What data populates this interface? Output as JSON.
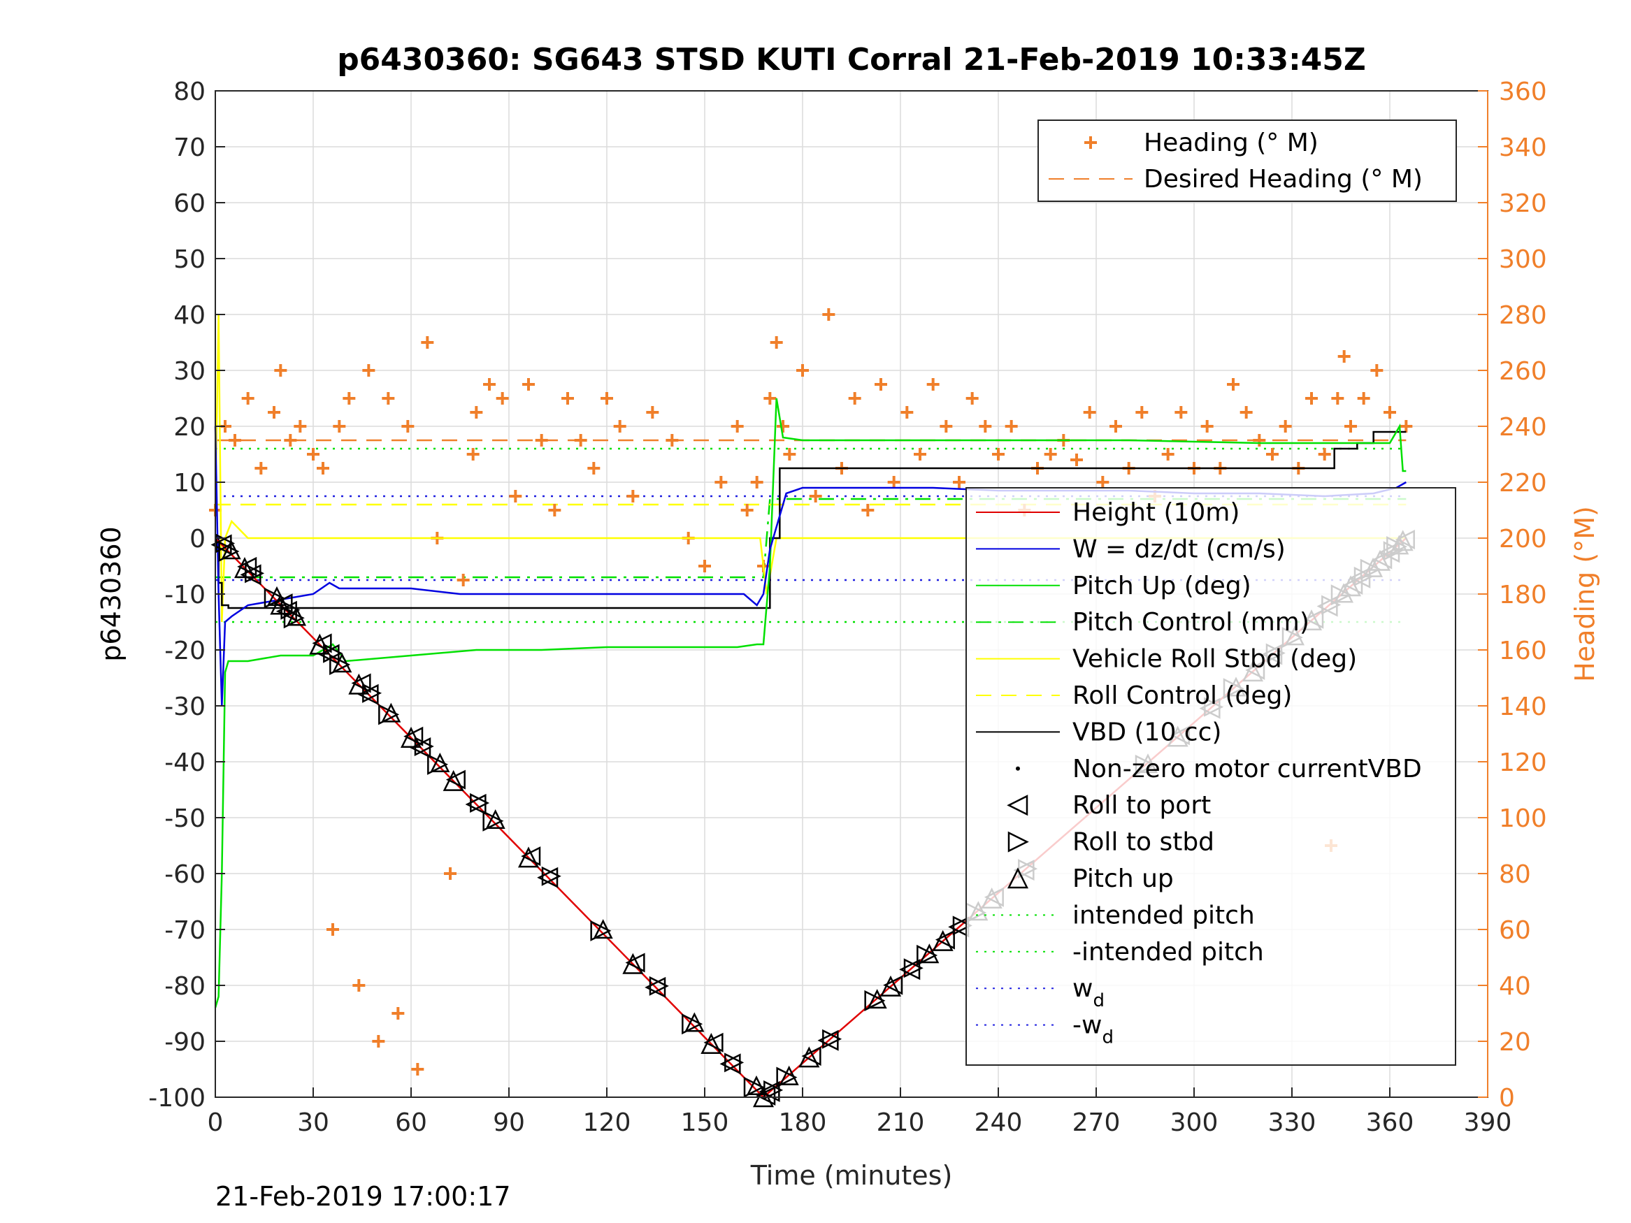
{
  "title": "p6430360: SG643 STSD KUTI Corral 21-Feb-2019 10:33:45Z",
  "footer": "21-Feb-2019 17:00:17",
  "colors": {
    "heading": "#f07f2a",
    "height": "#e00000",
    "w": "#0000e0",
    "pitch": "#00e000",
    "roll": "#ffff00",
    "vbd": "#000000",
    "wd": "#2020e0",
    "grid": "#dcdcdc"
  },
  "chart_data": {
    "type": "line",
    "xlabel": "Time (minutes)",
    "ylabel": "p6430360",
    "y2label": "Heading (°M)",
    "xlim": [
      0,
      390
    ],
    "ylim": [
      -100,
      80
    ],
    "y2lim": [
      0,
      360
    ],
    "grid": true,
    "x_ticks": [
      "0",
      "30",
      "60",
      "90",
      "120",
      "150",
      "180",
      "210",
      "240",
      "270",
      "300",
      "330",
      "360",
      "390"
    ],
    "y_ticks": [
      "80",
      "70",
      "60",
      "50",
      "40",
      "30",
      "20",
      "10",
      "0",
      "-10",
      "-20",
      "-30",
      "-40",
      "-50",
      "-60",
      "-70",
      "-80",
      "-90",
      "-100"
    ],
    "y2_ticks": [
      "360",
      "340",
      "320",
      "300",
      "280",
      "260",
      "240",
      "220",
      "200",
      "180",
      "160",
      "140",
      "120",
      "100",
      "80",
      "60",
      "40",
      "20",
      "0"
    ],
    "legend_top": {
      "placement": "top-right",
      "entries": [
        {
          "label": "Heading (° M)",
          "style": "plus",
          "color": "#f07f2a"
        },
        {
          "label": "Desired Heading (° M)",
          "style": "dashed",
          "color": "#f07f2a"
        }
      ]
    },
    "legend_main": {
      "placement": "right",
      "entries": [
        {
          "label": "Height (10m)",
          "style": "solid",
          "color": "#e00000"
        },
        {
          "label": "W = dz/dt (cm/s)",
          "style": "solid",
          "color": "#0000e0"
        },
        {
          "label": "Pitch Up (deg)",
          "style": "solid",
          "color": "#00e000"
        },
        {
          "label": "Pitch Control (mm)",
          "style": "dashdot",
          "color": "#00e000"
        },
        {
          "label": "Vehicle Roll Stbd (deg)",
          "style": "solid",
          "color": "#ffff00"
        },
        {
          "label": "Roll Control (deg)",
          "style": "dashed",
          "color": "#ffff00"
        },
        {
          "label": "VBD (10 cc)",
          "style": "solid",
          "color": "#000000"
        },
        {
          "label": "Non-zero motor currentVBD",
          "style": "dot",
          "color": "#000000"
        },
        {
          "label": "Roll to port",
          "style": "tri-left",
          "color": "#000000"
        },
        {
          "label": "Roll to stbd",
          "style": "tri-right",
          "color": "#000000"
        },
        {
          "label": "Pitch up",
          "style": "tri-up",
          "color": "#000000"
        },
        {
          "label": "intended pitch",
          "style": "dotted",
          "color": "#00e000"
        },
        {
          "label": "-intended pitch",
          "style": "dotted",
          "color": "#00e000"
        },
        {
          "label": "w",
          "sub": "d",
          "style": "dotted",
          "color": "#2020e0"
        },
        {
          "label": "-w",
          "sub": "d",
          "style": "dotted",
          "color": "#2020e0"
        }
      ]
    },
    "series": [
      {
        "name": "Height (10m)",
        "axis": "left",
        "style": "solid",
        "color": "#e00000",
        "x": [
          0,
          168,
          365
        ],
        "y": [
          0,
          -100,
          0
        ]
      },
      {
        "name": "W = dz/dt (cm/s)",
        "axis": "left",
        "style": "solid",
        "color": "#0000e0",
        "x": [
          0,
          1,
          2,
          3,
          5,
          10,
          20,
          30,
          35,
          38,
          45,
          60,
          75,
          90,
          110,
          130,
          150,
          162,
          166,
          168,
          170,
          175,
          180,
          200,
          220,
          240,
          260,
          280,
          300,
          320,
          340,
          355,
          362,
          365
        ],
        "y": [
          20,
          -10,
          -30,
          -15,
          -14,
          -12,
          -11,
          -10,
          -8,
          -9,
          -9,
          -9,
          -10,
          -10,
          -10,
          -10,
          -10,
          -10,
          -12,
          -10,
          -2,
          8,
          9,
          9,
          9,
          8.5,
          8.5,
          8.5,
          8,
          8,
          7.5,
          8,
          9,
          10
        ]
      },
      {
        "name": "Pitch Up (deg)",
        "axis": "left",
        "style": "solid",
        "color": "#00e000",
        "x": [
          0,
          1,
          2,
          3,
          4,
          10,
          20,
          30,
          36,
          40,
          60,
          80,
          100,
          120,
          140,
          160,
          166,
          168,
          170,
          172,
          174,
          180,
          200,
          240,
          280,
          320,
          340,
          360,
          363,
          364,
          365
        ],
        "y": [
          -84,
          -82,
          -60,
          -24,
          -22,
          -22,
          -21,
          -21,
          -19,
          -22,
          -21,
          -20,
          -20,
          -19.5,
          -19.5,
          -19.5,
          -19,
          -19,
          -5,
          25,
          18,
          17.5,
          17.5,
          17.5,
          17.5,
          17,
          17,
          17,
          20,
          12,
          12
        ]
      },
      {
        "name": "VBD (10 cc)",
        "axis": "left",
        "style": "step",
        "color": "#000000",
        "x": [
          0,
          1,
          2,
          3,
          4,
          168,
          170,
          173,
          250,
          340,
          343,
          350,
          355,
          365
        ],
        "y": [
          0,
          -8,
          -12,
          -12,
          -12.5,
          -12.5,
          0,
          12.5,
          12.5,
          12.5,
          16,
          17,
          19,
          19
        ]
      },
      {
        "name": "Vehicle Roll Stbd (deg)",
        "axis": "left",
        "style": "solid",
        "color": "#ffff00",
        "x": [
          0,
          1,
          2,
          3,
          5,
          10,
          20,
          40,
          60,
          80,
          100,
          120,
          140,
          160,
          167,
          169,
          172,
          180,
          200,
          240,
          280,
          300,
          320,
          340,
          360,
          365
        ],
        "y": [
          5,
          40,
          -15,
          0,
          3,
          0,
          0,
          0,
          0,
          0,
          0,
          0,
          0,
          0,
          0,
          -10,
          0,
          0,
          0,
          0,
          0,
          0,
          0,
          0,
          0,
          0
        ]
      },
      {
        "name": "intended pitch",
        "axis": "left",
        "style": "dotted",
        "color": "#00e000",
        "x": [
          0,
          365
        ],
        "y": [
          16,
          16
        ]
      },
      {
        "name": "-intended pitch",
        "axis": "left",
        "style": "dotted",
        "color": "#00e000",
        "x": [
          0,
          365
        ],
        "y": [
          -15,
          -15
        ]
      },
      {
        "name": "w_d",
        "axis": "left",
        "style": "dotted",
        "color": "#2020e0",
        "x": [
          0,
          365
        ],
        "y": [
          7.5,
          7.5
        ]
      },
      {
        "name": "-w_d",
        "axis": "left",
        "style": "dotted",
        "color": "#2020e0",
        "x": [
          0,
          365
        ],
        "y": [
          -7.5,
          -7.5
        ]
      },
      {
        "name": "Pitch Control (mm)",
        "axis": "left",
        "style": "dashdot",
        "color": "#00e000",
        "x": [
          0,
          168,
          170,
          365
        ],
        "y": [
          -7,
          -7,
          7,
          7
        ]
      },
      {
        "name": "Roll Control (deg)",
        "axis": "left",
        "style": "dashed",
        "color": "#ffff00",
        "x": [
          0,
          365
        ],
        "y": [
          6,
          6
        ]
      },
      {
        "name": "Desired Heading (° M)",
        "axis": "right",
        "style": "dashed",
        "color": "#f07f2a",
        "x": [
          0,
          365
        ],
        "y": [
          235,
          235
        ]
      },
      {
        "name": "Heading (° M)",
        "axis": "right",
        "style": "plus",
        "color": "#f07f2a",
        "x": [
          0,
          3,
          6,
          10,
          14,
          18,
          20,
          23,
          26,
          30,
          33,
          36,
          38,
          41,
          44,
          47,
          50,
          53,
          56,
          59,
          62,
          65,
          68,
          72,
          76,
          79,
          80,
          84,
          88,
          92,
          96,
          100,
          104,
          108,
          112,
          116,
          120,
          124,
          128,
          134,
          140,
          145,
          150,
          155,
          160,
          163,
          166,
          168,
          170,
          172,
          174,
          176,
          180,
          184,
          188,
          192,
          196,
          200,
          204,
          208,
          212,
          216,
          220,
          224,
          228,
          232,
          236,
          240,
          244,
          248,
          252,
          256,
          260,
          264,
          268,
          272,
          276,
          280,
          284,
          288,
          292,
          296,
          300,
          304,
          308,
          312,
          316,
          320,
          324,
          328,
          332,
          336,
          340,
          342,
          344,
          346,
          348,
          352,
          356,
          360,
          365
        ],
        "y": [
          210,
          240,
          235,
          250,
          225,
          245,
          260,
          235,
          240,
          230,
          225,
          60,
          240,
          250,
          40,
          260,
          20,
          250,
          30,
          240,
          10,
          270,
          200,
          80,
          185,
          230,
          245,
          255,
          250,
          215,
          255,
          235,
          210,
          250,
          235,
          225,
          250,
          240,
          215,
          245,
          235,
          200,
          190,
          220,
          240,
          210,
          220,
          190,
          250,
          270,
          240,
          230,
          260,
          215,
          280,
          225,
          250,
          210,
          255,
          220,
          245,
          230,
          255,
          240,
          220,
          250,
          240,
          230,
          240,
          210,
          225,
          230,
          235,
          228,
          245,
          220,
          240,
          225,
          245,
          215,
          230,
          245,
          225,
          240,
          225,
          255,
          245,
          235,
          230,
          240,
          225,
          250,
          230,
          90,
          250,
          265,
          240,
          250,
          260,
          245,
          240
        ]
      }
    ]
  }
}
